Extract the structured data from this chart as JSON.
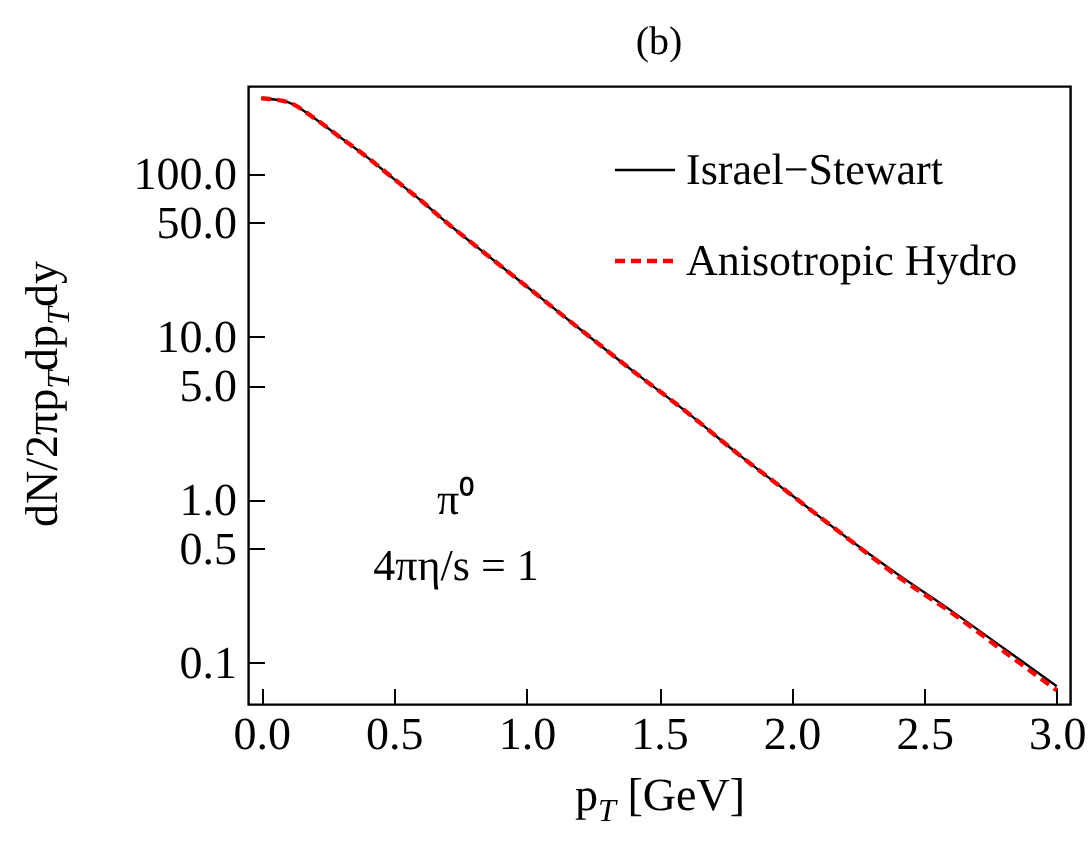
{
  "chart_data": {
    "type": "line",
    "title": "(b)",
    "xlabel": "p$_{T}$ [GeV]",
    "ylabel": "dN/2πp$_{T}$dp$_{T}$dy",
    "annotations": [
      "π⁰",
      "4πη/s = 1"
    ],
    "x": [
      0,
      0.1,
      0.2,
      0.3,
      0.4,
      0.5,
      0.6,
      0.7,
      0.8,
      1.0,
      1.2,
      1.4,
      1.6,
      1.8,
      2.0,
      2.2,
      2.4,
      2.6,
      2.8,
      3.0
    ],
    "series": [
      {
        "name": "Israel−Stewart",
        "color": "#000000",
        "line_style": "solid",
        "values": [
          290,
          275,
          219,
          166,
          126,
          93,
          69,
          50,
          37,
          20.4,
          11.2,
          6.2,
          3.5,
          1.9,
          1.07,
          0.6,
          0.35,
          0.21,
          0.123,
          0.072
        ]
      },
      {
        "name": "Anisotropic Hydro",
        "color": "#ff0000",
        "line_style": "dashed",
        "values": [
          290,
          275,
          219,
          166,
          126,
          93,
          69,
          50,
          37,
          20.4,
          11.2,
          6.2,
          3.5,
          1.9,
          1.07,
          0.6,
          0.34,
          0.205,
          0.118,
          0.068
        ]
      }
    ],
    "xlim": [
      -0.05,
      3.05
    ],
    "ylim": [
      0.056,
      345
    ],
    "log": "y",
    "legend": "top right",
    "marker": "none",
    "grid": false,
    "xticks": [
      {
        "value": 0,
        "label": "0.0"
      },
      {
        "value": 0.5,
        "label": "0.5"
      },
      {
        "value": 1,
        "label": "1.0"
      },
      {
        "value": 1.5,
        "label": "1.5"
      },
      {
        "value": 2,
        "label": "2.0"
      },
      {
        "value": 2.5,
        "label": "2.5"
      },
      {
        "value": 3,
        "label": "3.0"
      }
    ],
    "yticks": [
      {
        "value": 0.1,
        "label": "0.1"
      },
      {
        "value": 0.5,
        "label": "0.5"
      },
      {
        "value": 1,
        "label": "1.0"
      },
      {
        "value": 5,
        "label": "5.0"
      },
      {
        "value": 10,
        "label": "10.0"
      },
      {
        "value": 50,
        "label": "50.0"
      },
      {
        "value": 100,
        "label": "100.0"
      }
    ]
  }
}
